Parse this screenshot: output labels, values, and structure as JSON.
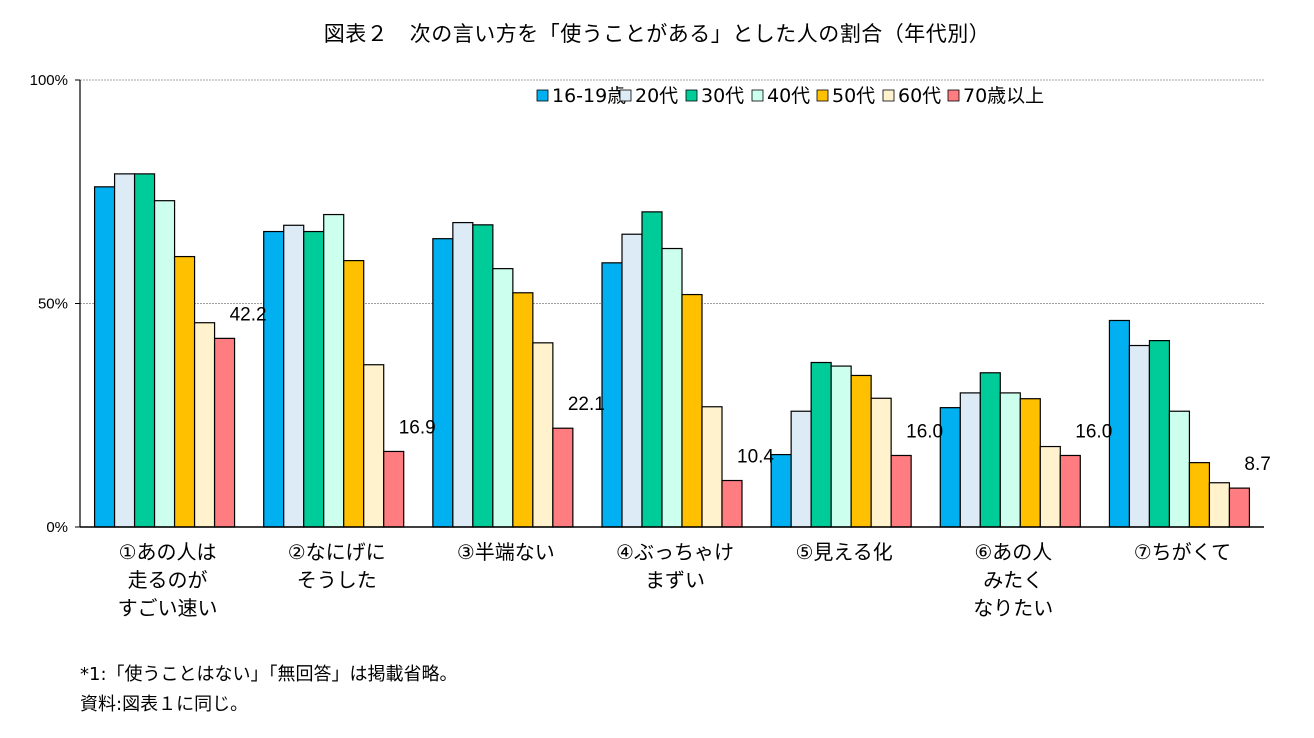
{
  "chart_data": {
    "type": "bar",
    "title": "図表２　次の言い方を「使うことがある」とした人の割合（年代別）",
    "xlabel": "",
    "ylabel": "",
    "ylim": [
      0,
      100
    ],
    "yticks": [
      {
        "value": 0,
        "label": "0%"
      },
      {
        "value": 50,
        "label": "50%"
      },
      {
        "value": 100,
        "label": "100%"
      }
    ],
    "grid": true,
    "legend_position": "top-right",
    "categories": [
      [
        "①あの人は",
        "走るのが",
        "すごい速い"
      ],
      [
        "②なにげに",
        "そうした"
      ],
      [
        "③半端ない"
      ],
      [
        "④ぶっちゃけ",
        "まずい"
      ],
      [
        "⑤見える化"
      ],
      [
        "⑥あの人",
        "みたく",
        "なりたい"
      ],
      [
        "⑦ちがくて"
      ]
    ],
    "series": [
      {
        "name": "16-19歳",
        "color": "#00B0F0",
        "values": [
          76.1,
          66.1,
          64.5,
          59.1,
          16.2,
          26.7,
          46.2
        ]
      },
      {
        "name": "20代",
        "color": "#DDEBF7",
        "values": [
          79.0,
          67.5,
          68.1,
          65.5,
          25.9,
          30.0,
          40.6
        ]
      },
      {
        "name": "30代",
        "color": "#00CC99",
        "values": [
          79.0,
          66.1,
          67.6,
          70.5,
          36.8,
          34.5,
          41.7
        ]
      },
      {
        "name": "40代",
        "color": "#CCFFEE",
        "values": [
          73.0,
          69.9,
          57.8,
          62.3,
          36.0,
          30.0,
          25.9
        ]
      },
      {
        "name": "50代",
        "color": "#FFC000",
        "values": [
          60.5,
          59.6,
          52.4,
          52.0,
          33.9,
          28.7,
          14.4
        ]
      },
      {
        "name": "60代",
        "color": "#FFF2CC",
        "values": [
          45.7,
          36.3,
          41.2,
          26.9,
          28.8,
          18.0,
          9.9
        ]
      },
      {
        "name": "70歳以上",
        "color": "#FF7C80",
        "values": [
          42.2,
          16.9,
          22.1,
          10.4,
          16.0,
          16.0,
          8.7
        ]
      }
    ],
    "data_labels": [
      {
        "series": 6,
        "category": 0,
        "text": "42.2"
      },
      {
        "series": 6,
        "category": 1,
        "text": "16.9"
      },
      {
        "series": 6,
        "category": 2,
        "text": "22.1"
      },
      {
        "series": 6,
        "category": 3,
        "text": "10.4"
      },
      {
        "series": 6,
        "category": 4,
        "text": "16.0"
      },
      {
        "series": 6,
        "category": 5,
        "text": "16.0"
      },
      {
        "series": 6,
        "category": 6,
        "text": "8.7"
      }
    ]
  },
  "notes": [
    "*1:「使うことはない」「無回答」は掲載省略。",
    "資料:図表１に同じ。"
  ]
}
